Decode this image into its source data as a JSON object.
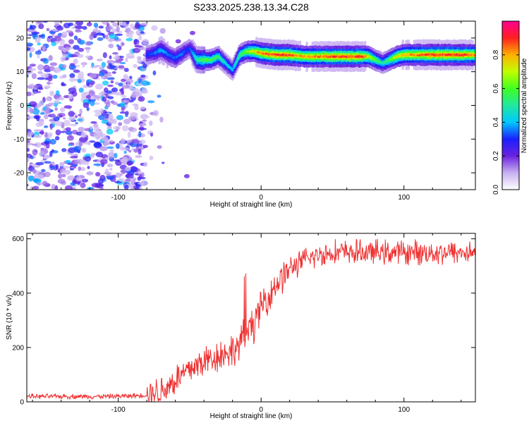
{
  "title": "S233.2025.238.13.34.C28",
  "chart_data": [
    {
      "type": "heatmap",
      "xlabel": "Height of straight line (km)",
      "ylabel": "Frequency (Hz)",
      "xlim": [
        -164,
        150
      ],
      "ylim": [
        -25,
        25
      ],
      "xticks": [
        -100,
        0,
        100
      ],
      "xtick_labels": [
        "-100",
        "0",
        "100"
      ],
      "yticks": [
        -20,
        -10,
        0,
        10,
        20
      ],
      "ytick_labels": [
        "-20",
        "-10",
        "0",
        "10",
        "20"
      ],
      "colorbar": {
        "label": "Normalized spectral amplitude",
        "range": [
          0,
          1
        ],
        "ticks": [
          0,
          0.2,
          0.4,
          0.6,
          0.8
        ],
        "tick_labels": [
          "0.0",
          "0.2",
          "0.4",
          "0.6",
          "0.8"
        ],
        "colors": [
          "#ffffff",
          "#c8b0f0",
          "#6a22e0",
          "#1b20ff",
          "#00c8ff",
          "#20e8a0",
          "#40ff20",
          "#c0ff00",
          "#ffb000",
          "#ff2020",
          "#ff0090"
        ]
      },
      "ridge": {
        "name": "",
        "x": [
          -80,
          -75,
          -70,
          -65,
          -60,
          -55,
          -50,
          -45,
          -40,
          -35,
          -30,
          -25,
          -20,
          -15,
          -10,
          -5,
          0,
          10,
          20,
          30,
          40,
          50,
          60,
          70,
          75,
          80,
          85,
          90,
          95,
          100,
          110,
          120,
          130,
          140,
          150
        ],
        "y": [
          15,
          15.5,
          16.5,
          15,
          14,
          15.5,
          17,
          13.5,
          13.5,
          13.5,
          14.5,
          12.5,
          10.5,
          15,
          16,
          16,
          15.5,
          15,
          15,
          14.5,
          14.5,
          14.5,
          14.5,
          14.5,
          14.5,
          13.5,
          12.5,
          13.5,
          14.5,
          15,
          15,
          15,
          15,
          15,
          15
        ],
        "amp": [
          0.3,
          0.35,
          0.4,
          0.35,
          0.35,
          0.35,
          0.3,
          0.5,
          0.6,
          0.6,
          0.55,
          0.45,
          0.4,
          0.55,
          0.65,
          0.75,
          0.85,
          0.9,
          0.9,
          0.8,
          0.85,
          0.9,
          0.9,
          0.9,
          0.75,
          0.6,
          0.5,
          0.6,
          0.75,
          0.8,
          0.85,
          0.9,
          0.9,
          0.9,
          0.85
        ]
      },
      "noise_region": {
        "x": [
          -164,
          -80
        ],
        "y": [
          -25,
          25
        ]
      }
    },
    {
      "type": "line",
      "xlabel": "Height of straight line (km)",
      "ylabel": "SNR (10 * v/v)",
      "xlim": [
        -164,
        150
      ],
      "ylim": [
        0,
        620
      ],
      "xticks": [
        -100,
        0,
        100
      ],
      "xtick_labels": [
        "-100",
        "0",
        "100"
      ],
      "yticks": [
        0,
        200,
        400,
        600
      ],
      "ytick_labels": [
        "0",
        "200",
        "400",
        "600"
      ],
      "line_color": "#ee3030",
      "series": [
        {
          "name": "",
          "x": [
            -164,
            -150,
            -130,
            -110,
            -90,
            -80,
            -70,
            -60,
            -50,
            -40,
            -30,
            -20,
            -15,
            -10,
            -5,
            0,
            10,
            20,
            30,
            40,
            50,
            60,
            80,
            100,
            120,
            150
          ],
          "y": [
            20,
            20,
            20,
            20,
            22,
            25,
            40,
            80,
            120,
            150,
            170,
            190,
            210,
            260,
            290,
            350,
            430,
            490,
            520,
            540,
            550,
            550,
            550,
            550,
            550,
            550
          ]
        }
      ]
    }
  ]
}
